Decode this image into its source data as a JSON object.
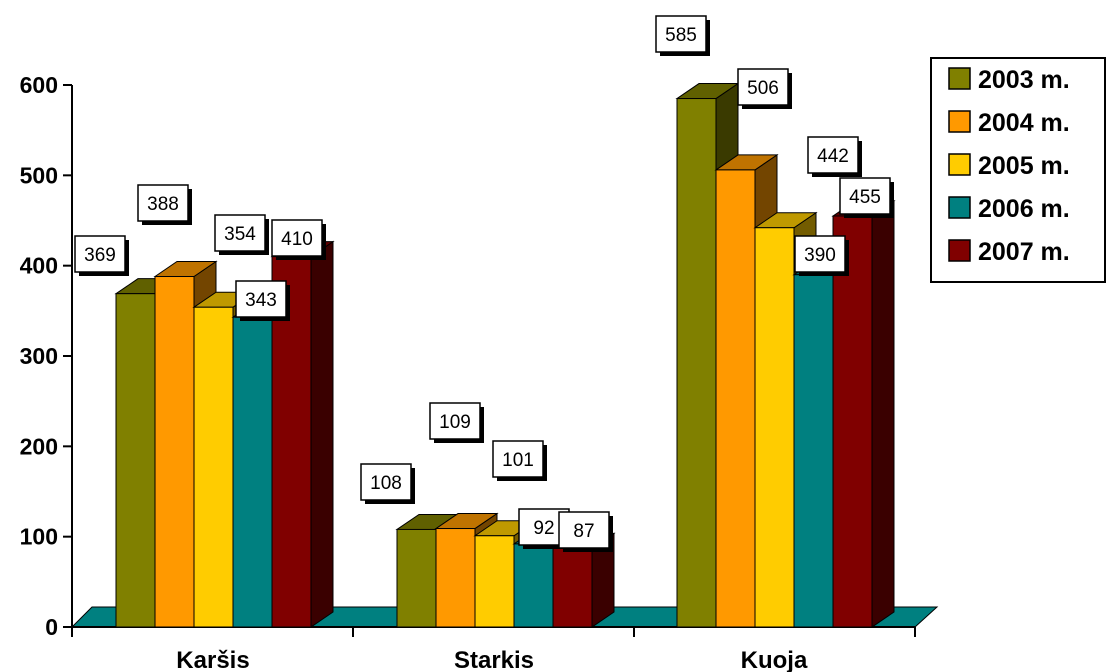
{
  "chart_data": {
    "type": "bar",
    "categories": [
      "Karšis",
      "Starkis",
      "Kuoja"
    ],
    "series": [
      {
        "name": "2003 m.",
        "color": "#808000",
        "values": [
          369,
          108,
          585
        ]
      },
      {
        "name": "2004 m.",
        "color": "#FF9900",
        "values": [
          388,
          109,
          506
        ]
      },
      {
        "name": "2005 m.",
        "color": "#FFCC00",
        "values": [
          354,
          101,
          442
        ]
      },
      {
        "name": "2006 m.",
        "color": "#008080",
        "values": [
          343,
          92,
          390
        ]
      },
      {
        "name": "2007 m.",
        "color": "#800000",
        "values": [
          410,
          87,
          455
        ]
      }
    ],
    "y_ticks": [
      "0",
      "100",
      "200",
      "300",
      "400",
      "500",
      "600"
    ],
    "ylim": [
      0,
      600
    ],
    "title": "",
    "xlabel": "",
    "ylabel": "",
    "style": "3d-clustered-bar",
    "legend_position": "right",
    "floor_color": "#008080",
    "grid": false
  }
}
